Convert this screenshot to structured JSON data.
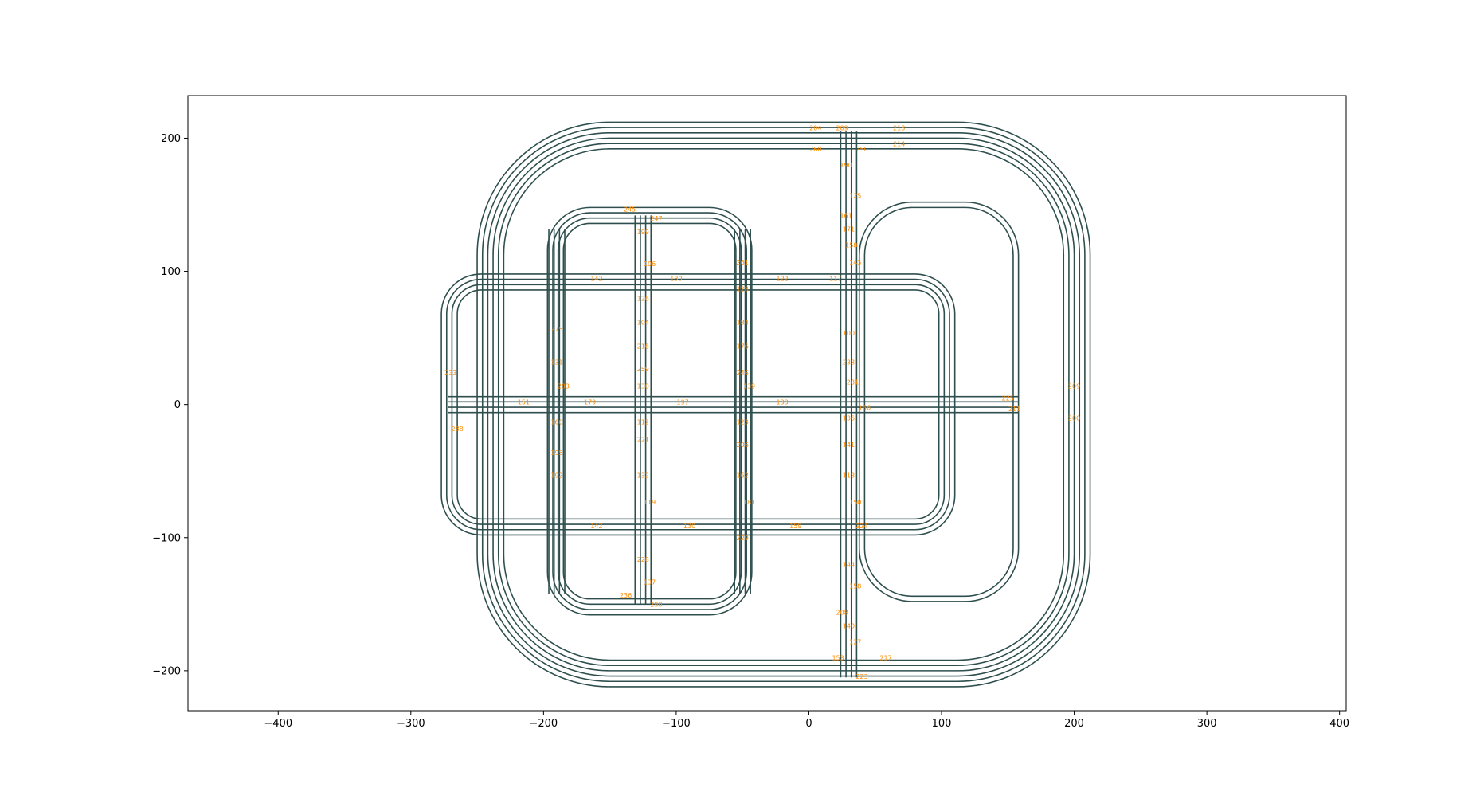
{
  "chart_data": {
    "type": "line",
    "title": "",
    "xlabel": "",
    "ylabel": "",
    "xlim": [
      -468,
      405
    ],
    "ylim": [
      -230,
      232
    ],
    "aspect": "equal",
    "grid": false,
    "legend": "none",
    "colors": {
      "lane": "#2f4f4f",
      "label": "#ff8c00",
      "frame": "#000000"
    },
    "x_ticks": [
      {
        "value": -400,
        "label": "−400"
      },
      {
        "value": -300,
        "label": "−300"
      },
      {
        "value": -200,
        "label": "−200"
      },
      {
        "value": -100,
        "label": "−100"
      },
      {
        "value": 0,
        "label": "0"
      },
      {
        "value": 100,
        "label": "100"
      },
      {
        "value": 200,
        "label": "200"
      },
      {
        "value": 300,
        "label": "300"
      },
      {
        "value": 400,
        "label": "400"
      }
    ],
    "y_ticks": [
      {
        "value": 200,
        "label": "200"
      },
      {
        "value": 100,
        "label": "100"
      },
      {
        "value": 0,
        "label": "0"
      },
      {
        "value": -100,
        "label": "−100"
      },
      {
        "value": -200,
        "label": "−200"
      }
    ],
    "series": [
      {
        "kind": "rounded_ring",
        "x": [
          -250,
          212
        ],
        "y": [
          -212,
          212
        ],
        "corner_radius": 100,
        "lanes": [
          0,
          4,
          8,
          12,
          16,
          20
        ]
      },
      {
        "kind": "rounded_ring",
        "x": [
          -277,
          110
        ],
        "y": [
          -98,
          98
        ],
        "corner_radius": 30,
        "lanes": [
          0,
          4,
          8,
          12
        ]
      },
      {
        "kind": "rounded_ring",
        "x": [
          -197,
          -43
        ],
        "y": [
          -158,
          148
        ],
        "corner_radius": 32,
        "lanes": [
          0,
          4,
          8,
          12
        ]
      },
      {
        "kind": "rounded_ring",
        "x": [
          38,
          158
        ],
        "y": [
          -148,
          152
        ],
        "corner_radius": 40,
        "lanes": [
          0,
          4
        ]
      },
      {
        "kind": "h_corridor",
        "y": 0,
        "x": [
          -272,
          158
        ],
        "lanes": [
          -6,
          -2,
          2,
          6
        ]
      },
      {
        "kind": "v_corridor",
        "x": -190,
        "y": [
          -142,
          132
        ],
        "lanes": [
          -6,
          -2,
          2,
          6
        ]
      },
      {
        "kind": "v_corridor",
        "x": -125,
        "y": [
          -150,
          142
        ],
        "lanes": [
          -6,
          -2,
          2,
          6
        ]
      },
      {
        "kind": "v_corridor",
        "x": -50,
        "y": [
          -142,
          132
        ],
        "lanes": [
          -6,
          -2,
          2,
          6
        ]
      },
      {
        "kind": "v_corridor",
        "x": 30,
        "y": [
          -205,
          205
        ],
        "lanes": [
          -6,
          -2,
          2,
          6
        ]
      }
    ],
    "lane_ids": [
      {
        "x": 5,
        "y": 206,
        "text": "204"
      },
      {
        "x": 25,
        "y": 206,
        "text": "209"
      },
      {
        "x": 68,
        "y": 206,
        "text": "213"
      },
      {
        "x": 68,
        "y": 194,
        "text": "214"
      },
      {
        "x": 5,
        "y": 190,
        "text": "260"
      },
      {
        "x": 40,
        "y": 190,
        "text": "250"
      },
      {
        "x": 28,
        "y": 178,
        "text": "190"
      },
      {
        "x": 35,
        "y": 155,
        "text": "125"
      },
      {
        "x": 28,
        "y": 140,
        "text": "161"
      },
      {
        "x": 30,
        "y": 130,
        "text": "171"
      },
      {
        "x": 32,
        "y": 118,
        "text": "158"
      },
      {
        "x": 35,
        "y": 105,
        "text": "143"
      },
      {
        "x": 30,
        "y": 52,
        "text": "100"
      },
      {
        "x": 30,
        "y": 30,
        "text": "238"
      },
      {
        "x": 33,
        "y": 15,
        "text": "281"
      },
      {
        "x": 30,
        "y": -12,
        "text": "136"
      },
      {
        "x": 30,
        "y": -32,
        "text": "141"
      },
      {
        "x": 30,
        "y": -55,
        "text": "118"
      },
      {
        "x": 35,
        "y": -75,
        "text": "150"
      },
      {
        "x": 30,
        "y": -122,
        "text": "144"
      },
      {
        "x": 35,
        "y": -138,
        "text": "158"
      },
      {
        "x": 25,
        "y": -158,
        "text": "208"
      },
      {
        "x": 30,
        "y": -168,
        "text": "140"
      },
      {
        "x": 35,
        "y": -180,
        "text": "127"
      },
      {
        "x": 22,
        "y": -192,
        "text": "153"
      },
      {
        "x": 58,
        "y": -192,
        "text": "217"
      },
      {
        "x": 40,
        "y": -206,
        "text": "223"
      },
      {
        "x": -135,
        "y": 145,
        "text": "245"
      },
      {
        "x": -115,
        "y": 138,
        "text": "247"
      },
      {
        "x": -125,
        "y": 128,
        "text": "199"
      },
      {
        "x": -120,
        "y": 104,
        "text": "106"
      },
      {
        "x": -125,
        "y": 78,
        "text": "126"
      },
      {
        "x": -125,
        "y": 60,
        "text": "104"
      },
      {
        "x": -125,
        "y": 42,
        "text": "216"
      },
      {
        "x": -125,
        "y": 25,
        "text": "259"
      },
      {
        "x": -125,
        "y": 12,
        "text": "130"
      },
      {
        "x": -125,
        "y": -15,
        "text": "112"
      },
      {
        "x": -125,
        "y": -28,
        "text": "221"
      },
      {
        "x": -125,
        "y": -55,
        "text": "132"
      },
      {
        "x": -120,
        "y": -75,
        "text": "119"
      },
      {
        "x": -125,
        "y": -118,
        "text": "228"
      },
      {
        "x": -120,
        "y": -135,
        "text": "137"
      },
      {
        "x": -138,
        "y": -145,
        "text": "236"
      },
      {
        "x": -115,
        "y": -152,
        "text": "290"
      },
      {
        "x": -190,
        "y": 55,
        "text": "275"
      },
      {
        "x": -190,
        "y": 30,
        "text": "131"
      },
      {
        "x": -185,
        "y": 12,
        "text": "283"
      },
      {
        "x": -190,
        "y": -15,
        "text": "160"
      },
      {
        "x": -190,
        "y": -38,
        "text": "195"
      },
      {
        "x": -190,
        "y": -55,
        "text": "192"
      },
      {
        "x": -50,
        "y": 105,
        "text": "261"
      },
      {
        "x": -50,
        "y": 85,
        "text": "128"
      },
      {
        "x": -50,
        "y": 60,
        "text": "184"
      },
      {
        "x": -50,
        "y": 42,
        "text": "176"
      },
      {
        "x": -50,
        "y": 22,
        "text": "246"
      },
      {
        "x": -45,
        "y": 12,
        "text": "139"
      },
      {
        "x": -50,
        "y": -15,
        "text": "123"
      },
      {
        "x": -50,
        "y": -32,
        "text": "206"
      },
      {
        "x": -50,
        "y": -55,
        "text": "162"
      },
      {
        "x": -45,
        "y": -75,
        "text": "181"
      },
      {
        "x": -50,
        "y": -102,
        "text": "229"
      },
      {
        "x": -270,
        "y": 22,
        "text": "233"
      },
      {
        "x": -265,
        "y": -20,
        "text": "288"
      },
      {
        "x": -215,
        "y": 0,
        "text": "151"
      },
      {
        "x": -165,
        "y": 0,
        "text": "179"
      },
      {
        "x": -95,
        "y": 0,
        "text": "197"
      },
      {
        "x": -20,
        "y": 0,
        "text": "133"
      },
      {
        "x": 42,
        "y": -4,
        "text": "156"
      },
      {
        "x": 150,
        "y": 3,
        "text": "225"
      },
      {
        "x": 155,
        "y": -5,
        "text": "211"
      },
      {
        "x": 200,
        "y": 12,
        "text": "209"
      },
      {
        "x": 200,
        "y": -12,
        "text": "200"
      },
      {
        "x": -160,
        "y": 93,
        "text": "142"
      },
      {
        "x": -100,
        "y": 93,
        "text": "180"
      },
      {
        "x": -20,
        "y": 93,
        "text": "122"
      },
      {
        "x": 20,
        "y": 93,
        "text": "117"
      },
      {
        "x": -160,
        "y": -93,
        "text": "142"
      },
      {
        "x": -90,
        "y": -93,
        "text": "130"
      },
      {
        "x": -10,
        "y": -93,
        "text": "159"
      },
      {
        "x": 40,
        "y": -93,
        "text": "224"
      }
    ]
  }
}
